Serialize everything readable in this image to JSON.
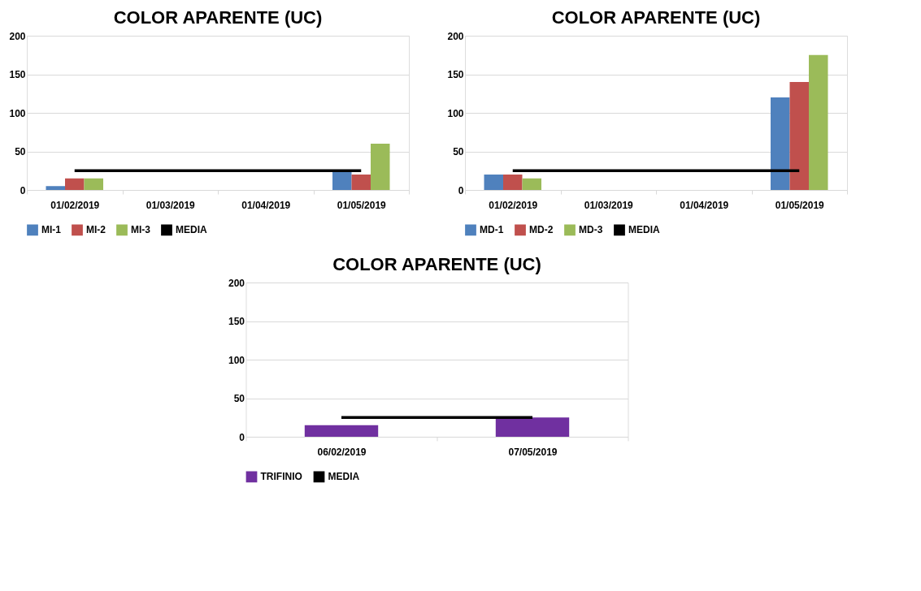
{
  "chart_data": [
    {
      "type": "bar",
      "title": "COLOR APARENTE (UC)",
      "categories": [
        "01/02/2019",
        "01/03/2019",
        "01/04/2019",
        "01/05/2019"
      ],
      "ylim": [
        0,
        200
      ],
      "yticks": [
        0,
        50,
        100,
        150,
        200
      ],
      "grid": "y",
      "legend": "bottom",
      "series": [
        {
          "name": "MI-1",
          "color": "#4f81bd",
          "values": [
            5,
            null,
            null,
            25
          ]
        },
        {
          "name": "MI-2",
          "color": "#c0504d",
          "values": [
            15,
            null,
            null,
            20
          ]
        },
        {
          "name": "MI-3",
          "color": "#9bbb59",
          "values": [
            15,
            null,
            null,
            60
          ]
        },
        {
          "name": "MEDIA",
          "type": "line",
          "color": "#000000",
          "values": [
            25,
            25,
            25,
            25
          ]
        }
      ]
    },
    {
      "type": "bar",
      "title": "COLOR APARENTE (UC)",
      "categories": [
        "01/02/2019",
        "01/03/2019",
        "01/04/2019",
        "01/05/2019"
      ],
      "ylim": [
        0,
        200
      ],
      "yticks": [
        0,
        50,
        100,
        150,
        200
      ],
      "grid": "y",
      "legend": "bottom",
      "series": [
        {
          "name": "MD-1",
          "color": "#4f81bd",
          "values": [
            20,
            null,
            null,
            120
          ]
        },
        {
          "name": "MD-2",
          "color": "#c0504d",
          "values": [
            20,
            null,
            null,
            140
          ]
        },
        {
          "name": "MD-3",
          "color": "#9bbb59",
          "values": [
            15,
            null,
            null,
            175
          ]
        },
        {
          "name": "MEDIA",
          "type": "line",
          "color": "#000000",
          "values": [
            25,
            25,
            25,
            25
          ]
        }
      ]
    },
    {
      "type": "bar",
      "title": "COLOR APARENTE (UC)",
      "categories": [
        "06/02/2019",
        "07/05/2019"
      ],
      "ylim": [
        0,
        200
      ],
      "yticks": [
        0,
        50,
        100,
        150,
        200
      ],
      "grid": "y",
      "legend": "bottom",
      "series": [
        {
          "name": "TRIFINIO",
          "color": "#7030a0",
          "values": [
            15,
            25
          ]
        },
        {
          "name": "MEDIA",
          "type": "line",
          "color": "#000000",
          "values": [
            25,
            25
          ]
        }
      ]
    }
  ]
}
